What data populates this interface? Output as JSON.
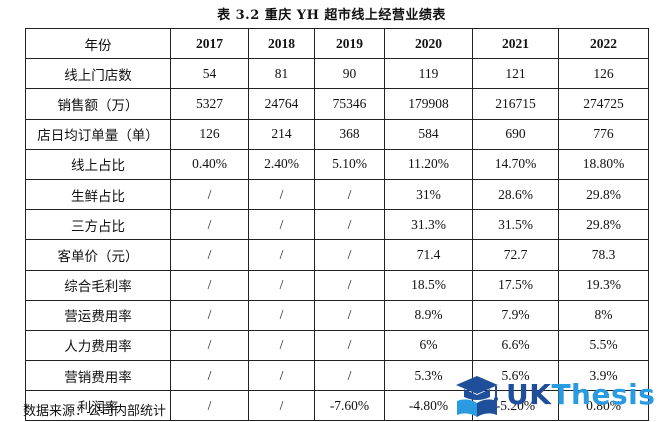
{
  "caption": "表  3.2  重庆 YH 超市线上经营业绩表",
  "table": {
    "header_label": "年份",
    "years": [
      "2017",
      "2018",
      "2019",
      "2020",
      "2021",
      "2022"
    ],
    "rows": [
      {
        "label": "线上门店数",
        "values": [
          "54",
          "81",
          "90",
          "119",
          "121",
          "126"
        ]
      },
      {
        "label": "销售额（万）",
        "values": [
          "5327",
          "24764",
          "75346",
          "179908",
          "216715",
          "274725"
        ]
      },
      {
        "label": "店日均订单量（单）",
        "values": [
          "126",
          "214",
          "368",
          "584",
          "690",
          "776"
        ]
      },
      {
        "label": "线上占比",
        "values": [
          "0.40%",
          "2.40%",
          "5.10%",
          "11.20%",
          "14.70%",
          "18.80%"
        ]
      },
      {
        "label": "生鲜占比",
        "values": [
          "/",
          "/",
          "/",
          "31%",
          "28.6%",
          "29.8%"
        ]
      },
      {
        "label": "三方占比",
        "values": [
          "/",
          "/",
          "/",
          "31.3%",
          "31.5%",
          "29.8%"
        ]
      },
      {
        "label": "客单价（元）",
        "values": [
          "/",
          "/",
          "/",
          "71.4",
          "72.7",
          "78.3"
        ]
      },
      {
        "label": "综合毛利率",
        "values": [
          "/",
          "/",
          "/",
          "18.5%",
          "17.5%",
          "19.3%"
        ]
      },
      {
        "label": "营运费用率",
        "values": [
          "/",
          "/",
          "/",
          "8.9%",
          "7.9%",
          "8%"
        ]
      },
      {
        "label": "人力费用率",
        "values": [
          "/",
          "/",
          "/",
          "6%",
          "6.6%",
          "5.5%"
        ]
      },
      {
        "label": "营销费用率",
        "values": [
          "/",
          "/",
          "/",
          "5.3%",
          "5.6%",
          "3.9%"
        ]
      },
      {
        "label": "利润率",
        "values": [
          "/",
          "/",
          "-7.60%",
          "-4.80%",
          "-5.20%",
          "0.80%"
        ]
      }
    ]
  },
  "source_note": "数据来源：公司内部统计",
  "watermark": {
    "brand_part1": "UK",
    "brand_part2": "Thesis",
    "icon": "graduation-cap-book-icon",
    "colors": {
      "dark": "#1f4f9a",
      "light": "#2a9be0"
    }
  }
}
